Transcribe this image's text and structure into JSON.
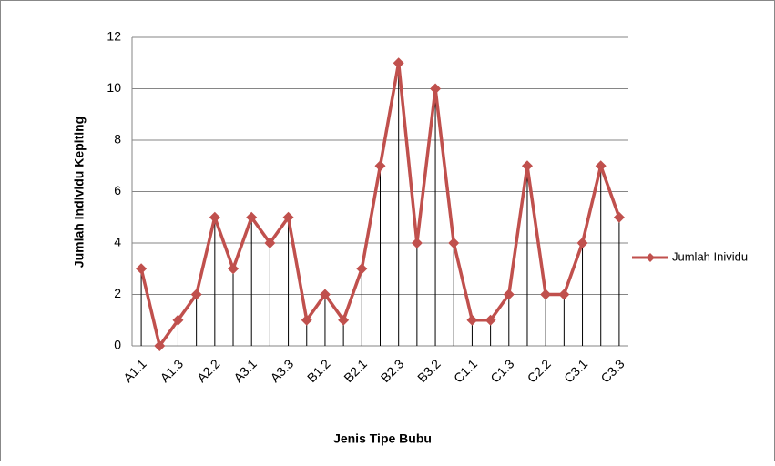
{
  "chart_data": {
    "type": "line",
    "x_label": "Jenis Tipe Bubu",
    "y_label": "Jumlah Individu Kepiting",
    "categories": [
      "A1.1",
      null,
      "A1.3",
      null,
      "A2.2",
      null,
      "A3.1",
      null,
      "A3.3",
      null,
      "B1.2",
      null,
      "B2.1",
      null,
      "B2.3",
      null,
      "B3.2",
      null,
      "C1.1",
      null,
      "C1.3",
      null,
      "C2.2",
      null,
      "C3.1",
      null,
      "C3.3"
    ],
    "series": [
      {
        "name": "Jumlah Inividu",
        "color": "#c0504d",
        "values": [
          3,
          0,
          1,
          2,
          5,
          3,
          5,
          4,
          5,
          1,
          2,
          1,
          3,
          7,
          11,
          4,
          10,
          4,
          1,
          1,
          2,
          7,
          2,
          2,
          4,
          7,
          5
        ]
      }
    ],
    "ylim": [
      0,
      12
    ],
    "yticks": [
      0,
      2,
      4,
      6,
      8,
      10,
      12
    ],
    "grid": true,
    "drop_lines": true,
    "legend": "right"
  }
}
